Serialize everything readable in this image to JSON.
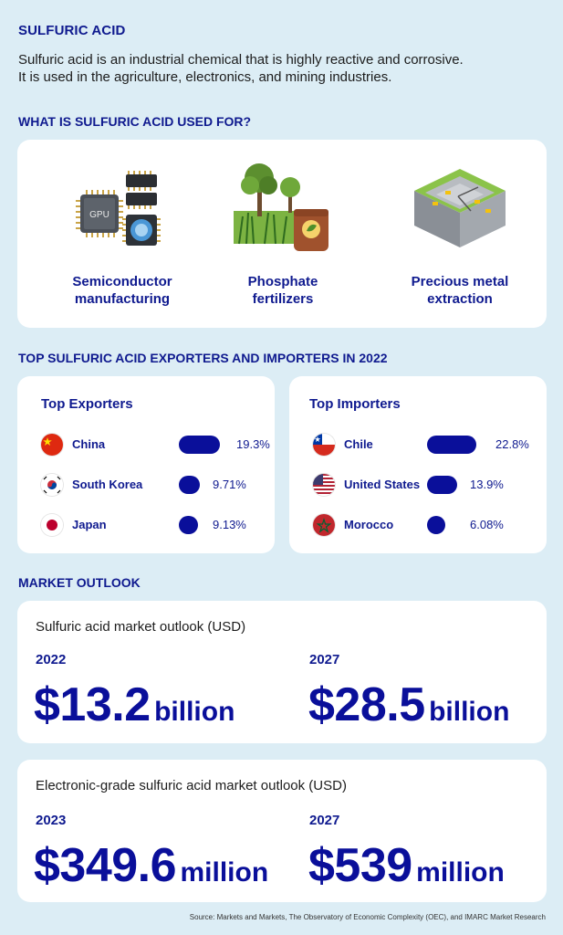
{
  "header": {
    "title": "SULFURIC ACID",
    "intro_line1": "Sulfuric acid is an industrial chemical that is highly reactive and corrosive.",
    "intro_line2": "It is used in the agriculture, electronics, and mining industries."
  },
  "uses": {
    "heading": "WHAT IS SULFURIC ACID USED FOR?",
    "items": [
      {
        "line1": "Semiconductor",
        "line2": "manufacturing",
        "icon": "chip-icon",
        "chip_text": "GPU"
      },
      {
        "line1": "Phosphate",
        "line2": "fertilizers",
        "icon": "fertilizer-icon"
      },
      {
        "line1": "Precious metal",
        "line2": "extraction",
        "icon": "mine-icon"
      }
    ]
  },
  "trade": {
    "heading": "TOP SULFURIC ACID EXPORTERS AND IMPORTERS IN 2022",
    "exporters": {
      "title": "Top Exporters",
      "rows": [
        {
          "country": "China",
          "value": 19.3,
          "label": "19.3%",
          "flag": "china-flag-icon"
        },
        {
          "country": "South Korea",
          "value": 9.71,
          "label": "9.71%",
          "flag": "south-korea-flag-icon"
        },
        {
          "country": "Japan",
          "value": 9.13,
          "label": "9.13%",
          "flag": "japan-flag-icon"
        }
      ]
    },
    "importers": {
      "title": "Top Importers",
      "rows": [
        {
          "country": "Chile",
          "value": 22.8,
          "label": "22.8%",
          "flag": "chile-flag-icon"
        },
        {
          "country": "United States",
          "value": 13.9,
          "label": "13.9%",
          "flag": "us-flag-icon"
        },
        {
          "country": "Morocco",
          "value": 6.08,
          "label": "6.08%",
          "flag": "morocco-flag-icon"
        }
      ]
    }
  },
  "outlook": {
    "heading": "MARKET OUTLOOK",
    "card1": {
      "subtitle": "Sulfuric acid market outlook (USD)",
      "left": {
        "year": "2022",
        "amount": "$13.2",
        "unit": "billion"
      },
      "right": {
        "year": "2027",
        "amount": "$28.5",
        "unit": "billion"
      }
    },
    "card2": {
      "subtitle": "Electronic-grade sulfuric acid market outlook (USD)",
      "left": {
        "year": "2023",
        "amount": "$349.6",
        "unit": "million"
      },
      "right": {
        "year": "2027",
        "amount": "$539",
        "unit": "million"
      }
    }
  },
  "source": "Source: Markets and Markets, The Observatory of Economic Complexity (OEC), and IMARC Market Research",
  "colors": {
    "navy": "#0f1a8f",
    "bar": "#0a0f9a",
    "background": "#dcedf5"
  }
}
